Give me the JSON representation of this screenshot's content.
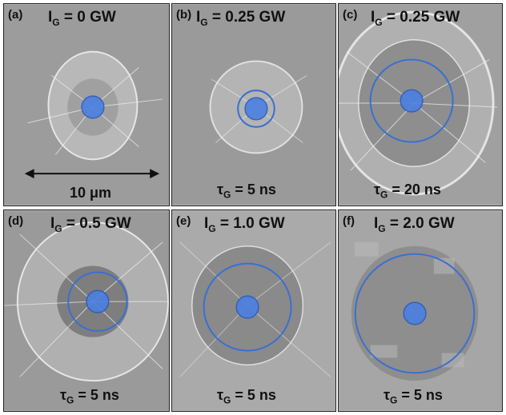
{
  "panels": [
    {
      "tag": "(a)",
      "ig": "0 GW",
      "tau": "",
      "scale": "10 μm"
    },
    {
      "tag": "(b)",
      "ig": "0.25 GW",
      "tau": "5 ns"
    },
    {
      "tag": "(c)",
      "ig": "0.25 GW",
      "tau": "20 ns"
    },
    {
      "tag": "(d)",
      "ig": "0.5 GW",
      "tau": "5 ns"
    },
    {
      "tag": "(e)",
      "ig": "1.0 GW",
      "tau": "5 ns"
    },
    {
      "tag": "(f)",
      "ig": "2.0 GW",
      "tau": "5 ns"
    }
  ],
  "symbols": {
    "I": "I",
    "G": "G",
    "tau": "τ",
    "eq": " = "
  },
  "colors": {
    "circle": "#3a6fd1",
    "dot": "#4a7fe0",
    "bg": "#9a9a9a"
  }
}
